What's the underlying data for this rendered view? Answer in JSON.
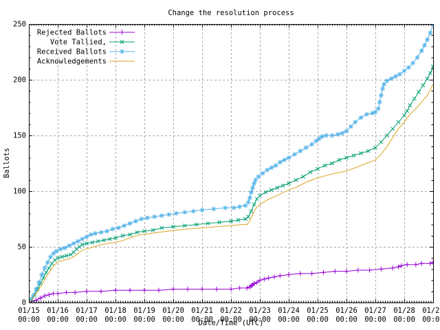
{
  "title": "Change the resolution process",
  "axes": {
    "xlabel": "Date/Time (UTC)",
    "ylabel": "Ballots",
    "ylim": [
      0,
      250
    ],
    "y_ticks": [
      0,
      50,
      100,
      150,
      200,
      250
    ],
    "x_ticks": [
      {
        "date": "01/15",
        "time": "00:00"
      },
      {
        "date": "01/16",
        "time": "00:00"
      },
      {
        "date": "01/17",
        "time": "00:00"
      },
      {
        "date": "01/18",
        "time": "00:00"
      },
      {
        "date": "01/19",
        "time": "00:00"
      },
      {
        "date": "01/20",
        "time": "00:00"
      },
      {
        "date": "01/21",
        "time": "00:00"
      },
      {
        "date": "01/22",
        "time": "00:00"
      },
      {
        "date": "01/23",
        "time": "00:00"
      },
      {
        "date": "01/24",
        "time": "00:00"
      },
      {
        "date": "01/25",
        "time": "00:00"
      },
      {
        "date": "01/26",
        "time": "00:00"
      },
      {
        "date": "01/27",
        "time": "00:00"
      },
      {
        "date": "01/28",
        "time": "00:00"
      },
      {
        "date": "01/29",
        "time": "00:00"
      }
    ]
  },
  "style": {
    "grid_color": "#a8a8a8",
    "axis_color": "#000000",
    "background": "#ffffff"
  },
  "chart_data": {
    "type": "line",
    "title": "Change the resolution process",
    "xlabel": "Date/Time (UTC)",
    "ylabel": "Ballots",
    "ylim": [
      0,
      250
    ],
    "x_unit": "days since 01/15 00:00 UTC",
    "x_range_days": [
      0,
      14
    ],
    "grid": true,
    "legend_position": "top-left",
    "series": [
      {
        "name": "Rejected Ballots",
        "color": "#9400d3",
        "marker": "plus",
        "points": [
          [
            0,
            0
          ],
          [
            0.1,
            1
          ],
          [
            0.25,
            2
          ],
          [
            0.4,
            4
          ],
          [
            0.55,
            6
          ],
          [
            0.7,
            7
          ],
          [
            0.85,
            8
          ],
          [
            1.0,
            8
          ],
          [
            1.3,
            9
          ],
          [
            1.6,
            9
          ],
          [
            2.0,
            10
          ],
          [
            2.5,
            10
          ],
          [
            3.0,
            11
          ],
          [
            3.5,
            11
          ],
          [
            4.0,
            11
          ],
          [
            4.5,
            11
          ],
          [
            5.0,
            12
          ],
          [
            5.5,
            12
          ],
          [
            6.0,
            12
          ],
          [
            6.5,
            12
          ],
          [
            7.0,
            12
          ],
          [
            7.3,
            13
          ],
          [
            7.55,
            13
          ],
          [
            7.65,
            14
          ],
          [
            7.7,
            15
          ],
          [
            7.75,
            16
          ],
          [
            7.8,
            17
          ],
          [
            7.9,
            18
          ],
          [
            8.0,
            20
          ],
          [
            8.15,
            21
          ],
          [
            8.3,
            22
          ],
          [
            8.5,
            23
          ],
          [
            8.7,
            24
          ],
          [
            9.0,
            25
          ],
          [
            9.4,
            26
          ],
          [
            9.8,
            26
          ],
          [
            10.2,
            27
          ],
          [
            10.6,
            28
          ],
          [
            11.0,
            28
          ],
          [
            11.4,
            29
          ],
          [
            11.8,
            29
          ],
          [
            12.2,
            30
          ],
          [
            12.6,
            31
          ],
          [
            12.8,
            32
          ],
          [
            12.9,
            33
          ],
          [
            13.1,
            34
          ],
          [
            13.4,
            34
          ],
          [
            13.6,
            35
          ],
          [
            13.9,
            35
          ],
          [
            14.0,
            36
          ]
        ]
      },
      {
        "name": "Vote Tallied,",
        "color": "#009e73",
        "marker": "cross",
        "points": [
          [
            0,
            0
          ],
          [
            0.1,
            3
          ],
          [
            0.2,
            7
          ],
          [
            0.3,
            12
          ],
          [
            0.4,
            17
          ],
          [
            0.5,
            22
          ],
          [
            0.6,
            27
          ],
          [
            0.7,
            31
          ],
          [
            0.8,
            35
          ],
          [
            0.9,
            38
          ],
          [
            1.0,
            40
          ],
          [
            1.15,
            41
          ],
          [
            1.3,
            42
          ],
          [
            1.45,
            43
          ],
          [
            1.55,
            45
          ],
          [
            1.65,
            48
          ],
          [
            1.75,
            50
          ],
          [
            1.85,
            52
          ],
          [
            2.0,
            53
          ],
          [
            2.2,
            54
          ],
          [
            2.4,
            55
          ],
          [
            2.6,
            56
          ],
          [
            2.8,
            57
          ],
          [
            3.0,
            58
          ],
          [
            3.25,
            60
          ],
          [
            3.5,
            61
          ],
          [
            3.75,
            63
          ],
          [
            4.0,
            64
          ],
          [
            4.3,
            65
          ],
          [
            4.6,
            67
          ],
          [
            5.0,
            68
          ],
          [
            5.4,
            69
          ],
          [
            5.8,
            70
          ],
          [
            6.2,
            71
          ],
          [
            6.6,
            72
          ],
          [
            7.0,
            73
          ],
          [
            7.25,
            74
          ],
          [
            7.5,
            75
          ],
          [
            7.6,
            77
          ],
          [
            7.7,
            82
          ],
          [
            7.8,
            88
          ],
          [
            7.9,
            93
          ],
          [
            8.0,
            96
          ],
          [
            8.2,
            99
          ],
          [
            8.4,
            101
          ],
          [
            8.6,
            103
          ],
          [
            8.8,
            105
          ],
          [
            9.0,
            107
          ],
          [
            9.25,
            110
          ],
          [
            9.5,
            113
          ],
          [
            9.75,
            117
          ],
          [
            10.0,
            120
          ],
          [
            10.25,
            123
          ],
          [
            10.5,
            125
          ],
          [
            10.75,
            128
          ],
          [
            11.0,
            130
          ],
          [
            11.25,
            132
          ],
          [
            11.5,
            134
          ],
          [
            11.75,
            136
          ],
          [
            12.0,
            139
          ],
          [
            12.2,
            144
          ],
          [
            12.4,
            150
          ],
          [
            12.6,
            156
          ],
          [
            12.8,
            162
          ],
          [
            13.0,
            168
          ],
          [
            13.1,
            172
          ],
          [
            13.2,
            177
          ],
          [
            13.35,
            183
          ],
          [
            13.5,
            189
          ],
          [
            13.65,
            195
          ],
          [
            13.8,
            201
          ],
          [
            13.9,
            206
          ],
          [
            14.0,
            212
          ]
        ]
      },
      {
        "name": "Received Ballots",
        "color": "#56b4e9",
        "marker": "asterisk",
        "points": [
          [
            0,
            0
          ],
          [
            0.05,
            2
          ],
          [
            0.15,
            6
          ],
          [
            0.25,
            12
          ],
          [
            0.35,
            18
          ],
          [
            0.45,
            25
          ],
          [
            0.55,
            31
          ],
          [
            0.65,
            36
          ],
          [
            0.75,
            41
          ],
          [
            0.85,
            44
          ],
          [
            0.95,
            46
          ],
          [
            1.1,
            48
          ],
          [
            1.25,
            49
          ],
          [
            1.4,
            51
          ],
          [
            1.55,
            53
          ],
          [
            1.7,
            55
          ],
          [
            1.85,
            57
          ],
          [
            2.0,
            59
          ],
          [
            2.15,
            61
          ],
          [
            2.3,
            62
          ],
          [
            2.5,
            63
          ],
          [
            2.7,
            64
          ],
          [
            2.9,
            66
          ],
          [
            3.1,
            67
          ],
          [
            3.3,
            69
          ],
          [
            3.5,
            71
          ],
          [
            3.7,
            73
          ],
          [
            3.9,
            75
          ],
          [
            4.1,
            76
          ],
          [
            4.35,
            77
          ],
          [
            4.6,
            78
          ],
          [
            4.85,
            79
          ],
          [
            5.1,
            80
          ],
          [
            5.4,
            81
          ],
          [
            5.7,
            82
          ],
          [
            6.0,
            83
          ],
          [
            6.4,
            84
          ],
          [
            6.8,
            85
          ],
          [
            7.1,
            85
          ],
          [
            7.3,
            86
          ],
          [
            7.5,
            87
          ],
          [
            7.6,
            90
          ],
          [
            7.65,
            94
          ],
          [
            7.7,
            99
          ],
          [
            7.75,
            103
          ],
          [
            7.8,
            107
          ],
          [
            7.85,
            110
          ],
          [
            7.95,
            113
          ],
          [
            8.1,
            116
          ],
          [
            8.25,
            119
          ],
          [
            8.4,
            121
          ],
          [
            8.55,
            123
          ],
          [
            8.7,
            126
          ],
          [
            8.85,
            128
          ],
          [
            9.0,
            130
          ],
          [
            9.2,
            133
          ],
          [
            9.4,
            136
          ],
          [
            9.6,
            139
          ],
          [
            9.8,
            142
          ],
          [
            9.95,
            145
          ],
          [
            10.05,
            147
          ],
          [
            10.15,
            149
          ],
          [
            10.3,
            150
          ],
          [
            10.5,
            150
          ],
          [
            10.7,
            151
          ],
          [
            10.85,
            152
          ],
          [
            11.0,
            154
          ],
          [
            11.15,
            158
          ],
          [
            11.3,
            162
          ],
          [
            11.5,
            166
          ],
          [
            11.7,
            169
          ],
          [
            11.9,
            170
          ],
          [
            12.0,
            171
          ],
          [
            12.1,
            174
          ],
          [
            12.15,
            180
          ],
          [
            12.2,
            186
          ],
          [
            12.25,
            192
          ],
          [
            12.3,
            196
          ],
          [
            12.4,
            199
          ],
          [
            12.55,
            201
          ],
          [
            12.7,
            203
          ],
          [
            12.85,
            205
          ],
          [
            13.0,
            208
          ],
          [
            13.15,
            211
          ],
          [
            13.3,
            215
          ],
          [
            13.45,
            220
          ],
          [
            13.6,
            226
          ],
          [
            13.7,
            231
          ],
          [
            13.8,
            236
          ],
          [
            13.9,
            242
          ],
          [
            14.0,
            250
          ]
        ]
      },
      {
        "name": "Acknowledgements",
        "color": "#daa520",
        "marker": "none",
        "points": [
          [
            0,
            0
          ],
          [
            0.1,
            2
          ],
          [
            0.2,
            6
          ],
          [
            0.3,
            10
          ],
          [
            0.4,
            14
          ],
          [
            0.5,
            18
          ],
          [
            0.6,
            23
          ],
          [
            0.7,
            27
          ],
          [
            0.8,
            31
          ],
          [
            0.9,
            34
          ],
          [
            1.0,
            36
          ],
          [
            1.2,
            38
          ],
          [
            1.4,
            39
          ],
          [
            1.55,
            41
          ],
          [
            1.7,
            44
          ],
          [
            1.85,
            47
          ],
          [
            2.0,
            48
          ],
          [
            2.25,
            50
          ],
          [
            2.5,
            52
          ],
          [
            2.75,
            53
          ],
          [
            3.0,
            54
          ],
          [
            3.3,
            56
          ],
          [
            3.6,
            59
          ],
          [
            3.9,
            61
          ],
          [
            4.2,
            62
          ],
          [
            4.5,
            63
          ],
          [
            4.8,
            64
          ],
          [
            5.1,
            65
          ],
          [
            5.5,
            66
          ],
          [
            6.0,
            67
          ],
          [
            6.5,
            68
          ],
          [
            7.0,
            69
          ],
          [
            7.35,
            70
          ],
          [
            7.55,
            70
          ],
          [
            7.65,
            73
          ],
          [
            7.75,
            79
          ],
          [
            7.85,
            84
          ],
          [
            8.0,
            88
          ],
          [
            8.25,
            92
          ],
          [
            8.5,
            95
          ],
          [
            8.75,
            98
          ],
          [
            9.0,
            101
          ],
          [
            9.3,
            104
          ],
          [
            9.6,
            108
          ],
          [
            10.0,
            112
          ],
          [
            10.3,
            114
          ],
          [
            10.6,
            116
          ],
          [
            11.0,
            118
          ],
          [
            11.3,
            121
          ],
          [
            11.6,
            124
          ],
          [
            12.0,
            128
          ],
          [
            12.2,
            133
          ],
          [
            12.4,
            140
          ],
          [
            12.6,
            148
          ],
          [
            12.8,
            156
          ],
          [
            13.0,
            162
          ],
          [
            13.2,
            169
          ],
          [
            13.4,
            174
          ],
          [
            13.6,
            180
          ],
          [
            13.8,
            186
          ],
          [
            14.0,
            196
          ]
        ]
      }
    ]
  }
}
